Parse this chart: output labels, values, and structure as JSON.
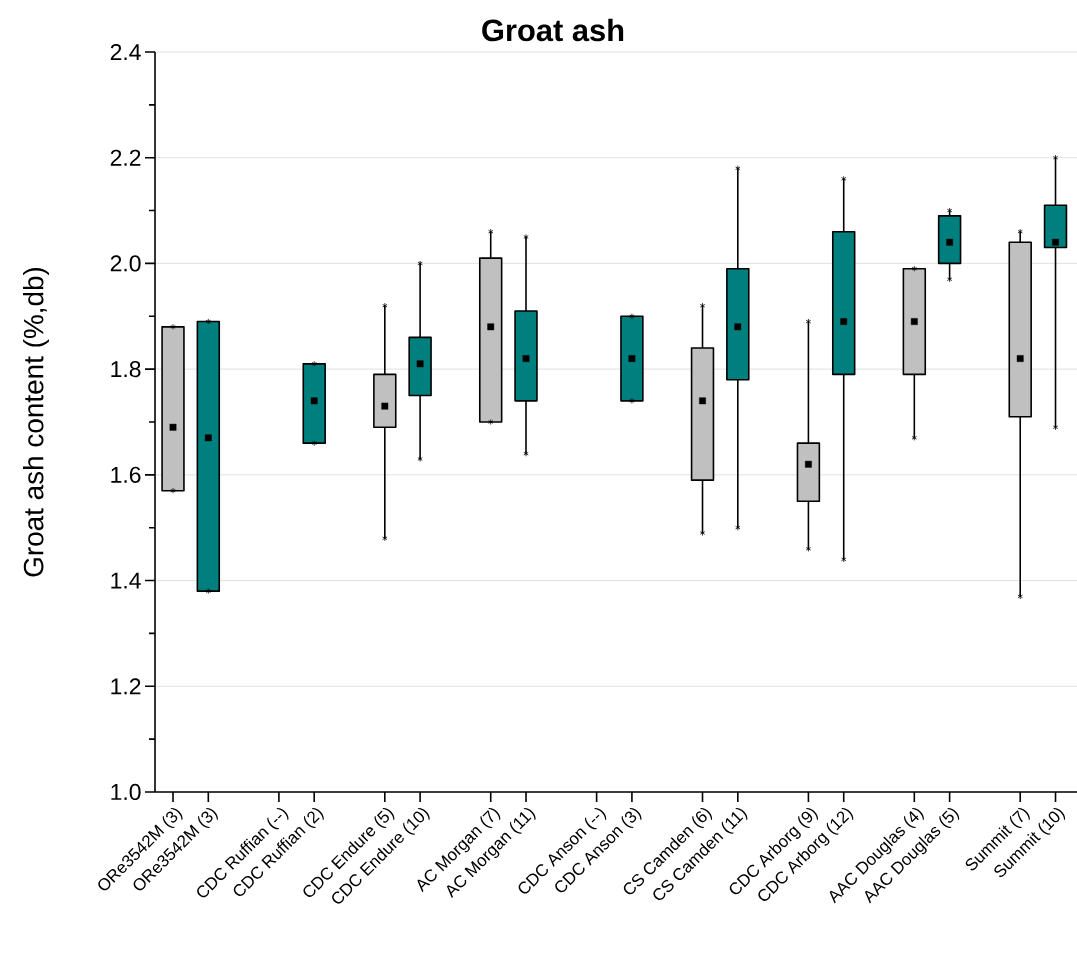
{
  "chart_data": {
    "type": "box",
    "title": "Groat ash",
    "ylabel": "Groat ash content (%,db)",
    "categories": [
      "ORe3542M (3)",
      "ORe3542M (3)",
      null,
      "CDC Ruffian (--)",
      "CDC Ruffian (2)",
      null,
      "CDC Endure (5)",
      "CDC Endure (10)",
      null,
      "AC Morgan (7)",
      "AC Morgan (11)",
      null,
      "CDC Anson (--)",
      "CDC Anson (3)",
      null,
      "CS Camden (6)",
      "CS Camden (11)",
      null,
      "CDC Arborg (9)",
      "CDC Arborg (12)",
      null,
      "AAC Douglas (4)",
      "AAC Douglas (5)",
      null,
      "Summit (7)",
      "Summit (10)"
    ],
    "series": [
      {
        "color": "#c0c0c0",
        "boxes": [
          {
            "low": 1.57,
            "q1": 1.57,
            "q3": 1.88,
            "high": 1.88,
            "mean": 1.69
          },
          null,
          null,
          null,
          null,
          null,
          {
            "low": 1.48,
            "q1": 1.69,
            "q3": 1.79,
            "high": 1.92,
            "mean": 1.73
          },
          null,
          null,
          {
            "low": 1.7,
            "q1": 1.7,
            "q3": 2.01,
            "high": 2.06,
            "mean": 1.88
          },
          null,
          null,
          null,
          null,
          null,
          {
            "low": 1.49,
            "q1": 1.59,
            "q3": 1.84,
            "high": 1.92,
            "mean": 1.74
          },
          null,
          null,
          {
            "low": 1.46,
            "q1": 1.55,
            "q3": 1.66,
            "high": 1.89,
            "mean": 1.62
          },
          null,
          null,
          {
            "low": 1.67,
            "q1": 1.79,
            "q3": 1.99,
            "high": 1.99,
            "mean": 1.89
          },
          null,
          null,
          {
            "low": 1.37,
            "q1": 1.71,
            "q3": 2.04,
            "high": 2.06,
            "mean": 1.82
          },
          null
        ]
      },
      {
        "color": "#007f7f",
        "boxes": [
          null,
          {
            "low": 1.38,
            "q1": 1.38,
            "q3": 1.89,
            "high": 1.89,
            "mean": 1.67
          },
          null,
          null,
          {
            "low": 1.66,
            "q1": 1.66,
            "q3": 1.81,
            "high": 1.81,
            "mean": 1.74
          },
          null,
          null,
          {
            "low": 1.63,
            "q1": 1.75,
            "q3": 1.86,
            "high": 2.0,
            "mean": 1.81
          },
          null,
          null,
          {
            "low": 1.64,
            "q1": 1.74,
            "q3": 1.91,
            "high": 2.05,
            "mean": 1.82
          },
          null,
          null,
          {
            "low": 1.74,
            "q1": 1.74,
            "q3": 1.9,
            "high": 1.9,
            "mean": 1.82
          },
          null,
          null,
          {
            "low": 1.5,
            "q1": 1.78,
            "q3": 1.99,
            "high": 2.18,
            "mean": 1.88
          },
          null,
          null,
          {
            "low": 1.44,
            "q1": 1.79,
            "q3": 2.06,
            "high": 2.16,
            "mean": 1.89
          },
          null,
          null,
          {
            "low": 1.97,
            "q1": 2.0,
            "q3": 2.09,
            "high": 2.1,
            "mean": 2.04
          },
          null,
          null,
          {
            "low": 1.69,
            "q1": 2.03,
            "q3": 2.11,
            "high": 2.2,
            "mean": 2.04
          }
        ]
      }
    ],
    "ylim": [
      1.0,
      2.4
    ],
    "yticks": [
      {
        "value": 1.0,
        "label": "1.0"
      },
      {
        "value": 1.2,
        "label": "1.2"
      },
      {
        "value": 1.4,
        "label": "1.4"
      },
      {
        "value": 1.6,
        "label": "1.6"
      },
      {
        "value": 1.8,
        "label": "1.8"
      },
      {
        "value": 2.0,
        "label": "2.0"
      },
      {
        "value": 2.2,
        "label": "2.2"
      },
      {
        "value": 2.4,
        "label": "2.4"
      }
    ],
    "grid": "y"
  }
}
